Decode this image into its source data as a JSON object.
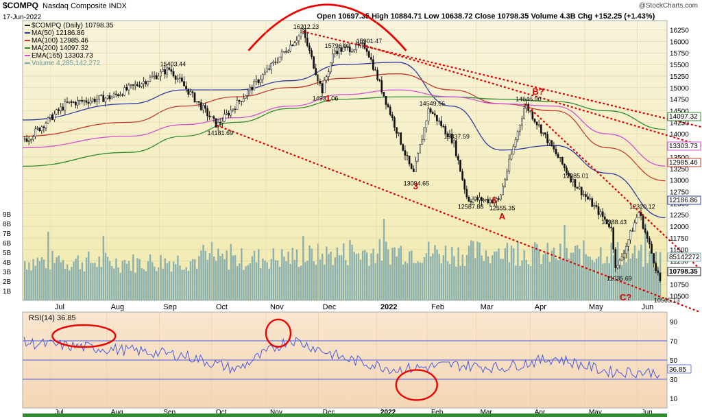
{
  "header": {
    "symbol": "$COMPQ",
    "name": "Nasdaq Composite INDX",
    "date": "17-Jun-2022",
    "watermark": "@StockCharts.com",
    "ohlc_text": "Open 10697.35  High 10884.71  Low 10638.72  Close 10798.35  Volume 4.3B  Chg +152.25 (+1.43%)"
  },
  "legend": [
    {
      "label": "$COMPQ (Daily) 10798.35",
      "color": "#222222"
    },
    {
      "label": "MA(50) 12186.86",
      "color": "#2a3aa0"
    },
    {
      "label": "MA(100) 12985.46",
      "color": "#c0392b"
    },
    {
      "label": "MA(200) 14097.32",
      "color": "#2e8b2e"
    },
    {
      "label": "EMA(165) 13303.73",
      "color": "#d050d0"
    },
    {
      "label": "Volume 4,285,142,272",
      "color": "#7fa8a8"
    }
  ],
  "colors": {
    "price_bg_top": "#f7f1d6",
    "price_bg_bottom": "#f3ecb3",
    "rsi_bg": "#f7dfc4",
    "volume": "#8ab0b0",
    "trendline": "#dd0000",
    "arc": "#ee0000",
    "ma50": "#2a3aa0",
    "ma100": "#c0392b",
    "ma200": "#2e8b2e",
    "ema165": "#d050d0",
    "rsi_line": "#4a5adf"
  },
  "price_axis_labels": [
    "16250",
    "16000",
    "15750",
    "15500",
    "15250",
    "15000",
    "14750",
    "14500",
    "14250",
    "14000",
    "13750",
    "13500",
    "13250",
    "13000",
    "12750",
    "12500",
    "12250",
    "12000",
    "11750",
    "11500",
    "11250",
    "11000",
    "10750",
    "10500"
  ],
  "volume_axis_labels": [
    "9B",
    "8B",
    "7B",
    "6B",
    "5B",
    "4B",
    "3B",
    "2B",
    "1B"
  ],
  "rsi_axis_labels": [
    "90",
    "70",
    "50",
    "30",
    "10"
  ],
  "month_labels": [
    "Jul",
    "Aug",
    "Sep",
    "Oct",
    "Nov",
    "Dec",
    "2022",
    "Feb",
    "Mar",
    "Apr",
    "May",
    "Jun"
  ],
  "price_value_tags": [
    {
      "text": "14097.32",
      "color": "#2e8b2e"
    },
    {
      "text": "13303.73",
      "color": "#d050d0"
    },
    {
      "text": "12985.46",
      "color": "#c0392b"
    },
    {
      "text": "12186.86",
      "color": "#2a3aa0"
    },
    {
      "text": "4285142272",
      "color": "#7fa8a8"
    },
    {
      "text": "10798.35",
      "color": "#222222"
    }
  ],
  "rsi_value_tag": "36.85",
  "rsi_title": "RSI(14) 36.85",
  "annotations": [
    "1",
    "3",
    "5",
    "A",
    "B?",
    "C?"
  ],
  "point_labels": [
    "16212.23",
    "15796.09",
    "15901.47",
    "15403.44",
    "14931.06",
    "14181.69",
    "14549.56",
    "14646.90",
    "13837.59",
    "13094.65",
    "12587.88",
    "12555.35",
    "12985.01",
    "11988.43",
    "12320.12",
    "11035.69",
    "10565.13"
  ],
  "chart_data": [
    {
      "type": "line",
      "title": "$COMPQ Nasdaq Composite INDX",
      "x": [
        "2021-07",
        "2021-08",
        "2021-09",
        "2021-10",
        "2021-11",
        "2021-12",
        "2022-01",
        "2022-02",
        "2022-03",
        "2022-04",
        "2022-05",
        "2022-06-17"
      ],
      "series": [
        {
          "name": "$COMPQ (Daily)",
          "values": [
            14600,
            14780,
            15050,
            14500,
            15600,
            15700,
            15100,
            13900,
            13200,
            14300,
            12500,
            10798
          ]
        },
        {
          "name": "MA(50)",
          "values": [
            14300,
            14650,
            14950,
            14950,
            15150,
            15500,
            15550,
            14600,
            13650,
            13750,
            13150,
            12187
          ]
        },
        {
          "name": "MA(100)",
          "values": [
            13950,
            14250,
            14600,
            14800,
            15000,
            15200,
            15300,
            14950,
            14650,
            14500,
            13700,
            12985
          ]
        },
        {
          "name": "MA(200)",
          "values": [
            13300,
            13600,
            13950,
            14250,
            14550,
            14750,
            14800,
            14800,
            14750,
            14700,
            14500,
            14097
          ]
        },
        {
          "name": "EMA(165)",
          "values": [
            13700,
            13950,
            14200,
            14350,
            14600,
            14850,
            14950,
            14800,
            14650,
            14600,
            14000,
            13304
          ]
        }
      ],
      "ylim": [
        10400,
        16450
      ],
      "key_points": [
        {
          "label": "15403.44",
          "x": "2021-09-07",
          "y": 15403.44
        },
        {
          "label": "14181.69",
          "x": "2021-10-04",
          "y": 14181.69
        },
        {
          "label": "16212.23",
          "x": "2021-11-22",
          "y": 16212.23
        },
        {
          "label": "14931.06",
          "x": "2021-12-03",
          "y": 14931.06
        },
        {
          "label": "15796.09",
          "x": "2021-12-10",
          "y": 15796.09
        },
        {
          "label": "15901.47",
          "x": "2021-12-28",
          "y": 15901.47
        },
        {
          "label": "13094.65",
          "x": "2022-01-24",
          "y": 13094.65
        },
        {
          "label": "14549.56",
          "x": "2022-02-02",
          "y": 14549.56
        },
        {
          "label": "13837.59",
          "x": "2022-02-16",
          "y": 13837.59
        },
        {
          "label": "12587.88",
          "x": "2022-02-24",
          "y": 12587.88
        },
        {
          "label": "12555.35",
          "x": "2022-03-14",
          "y": 12555.35
        },
        {
          "label": "14646.90",
          "x": "2022-03-29",
          "y": 14646.9
        },
        {
          "label": "12985.01",
          "x": "2022-04-25",
          "y": 12985.01
        },
        {
          "label": "11988.43",
          "x": "2022-05-17",
          "y": 11988.43
        },
        {
          "label": "11035.69",
          "x": "2022-05-20",
          "y": 11035.69
        },
        {
          "label": "12320.12",
          "x": "2022-06-02",
          "y": 12320.12
        },
        {
          "label": "10565.13",
          "x": "2022-06-16",
          "y": 10565.13
        }
      ]
    },
    {
      "type": "bar",
      "title": "Volume",
      "x": [
        "2021-07",
        "2021-08",
        "2021-09",
        "2021-10",
        "2021-11",
        "2021-12",
        "2022-01",
        "2022-02",
        "2022-03",
        "2022-04",
        "2022-05",
        "2022-06-17"
      ],
      "values": [
        4.2,
        4.0,
        4.3,
        4.4,
        4.6,
        5.0,
        5.3,
        5.0,
        5.2,
        4.8,
        5.2,
        4.3
      ],
      "ylabel": "Volume (B)",
      "ylim": [
        0,
        9.5
      ]
    },
    {
      "type": "line",
      "title": "RSI(14) 36.85",
      "x": [
        "2021-07",
        "2021-08",
        "2021-09",
        "2021-10",
        "2021-11",
        "2021-12",
        "2022-01",
        "2022-02",
        "2022-03",
        "2022-04",
        "2022-05",
        "2022-06-17"
      ],
      "series": [
        {
          "name": "RSI(14)",
          "values": [
            68,
            60,
            55,
            40,
            72,
            52,
            40,
            45,
            42,
            52,
            38,
            36.85
          ]
        }
      ],
      "ylim": [
        0,
        100
      ],
      "reference_lines": [
        30,
        50,
        70
      ]
    }
  ]
}
